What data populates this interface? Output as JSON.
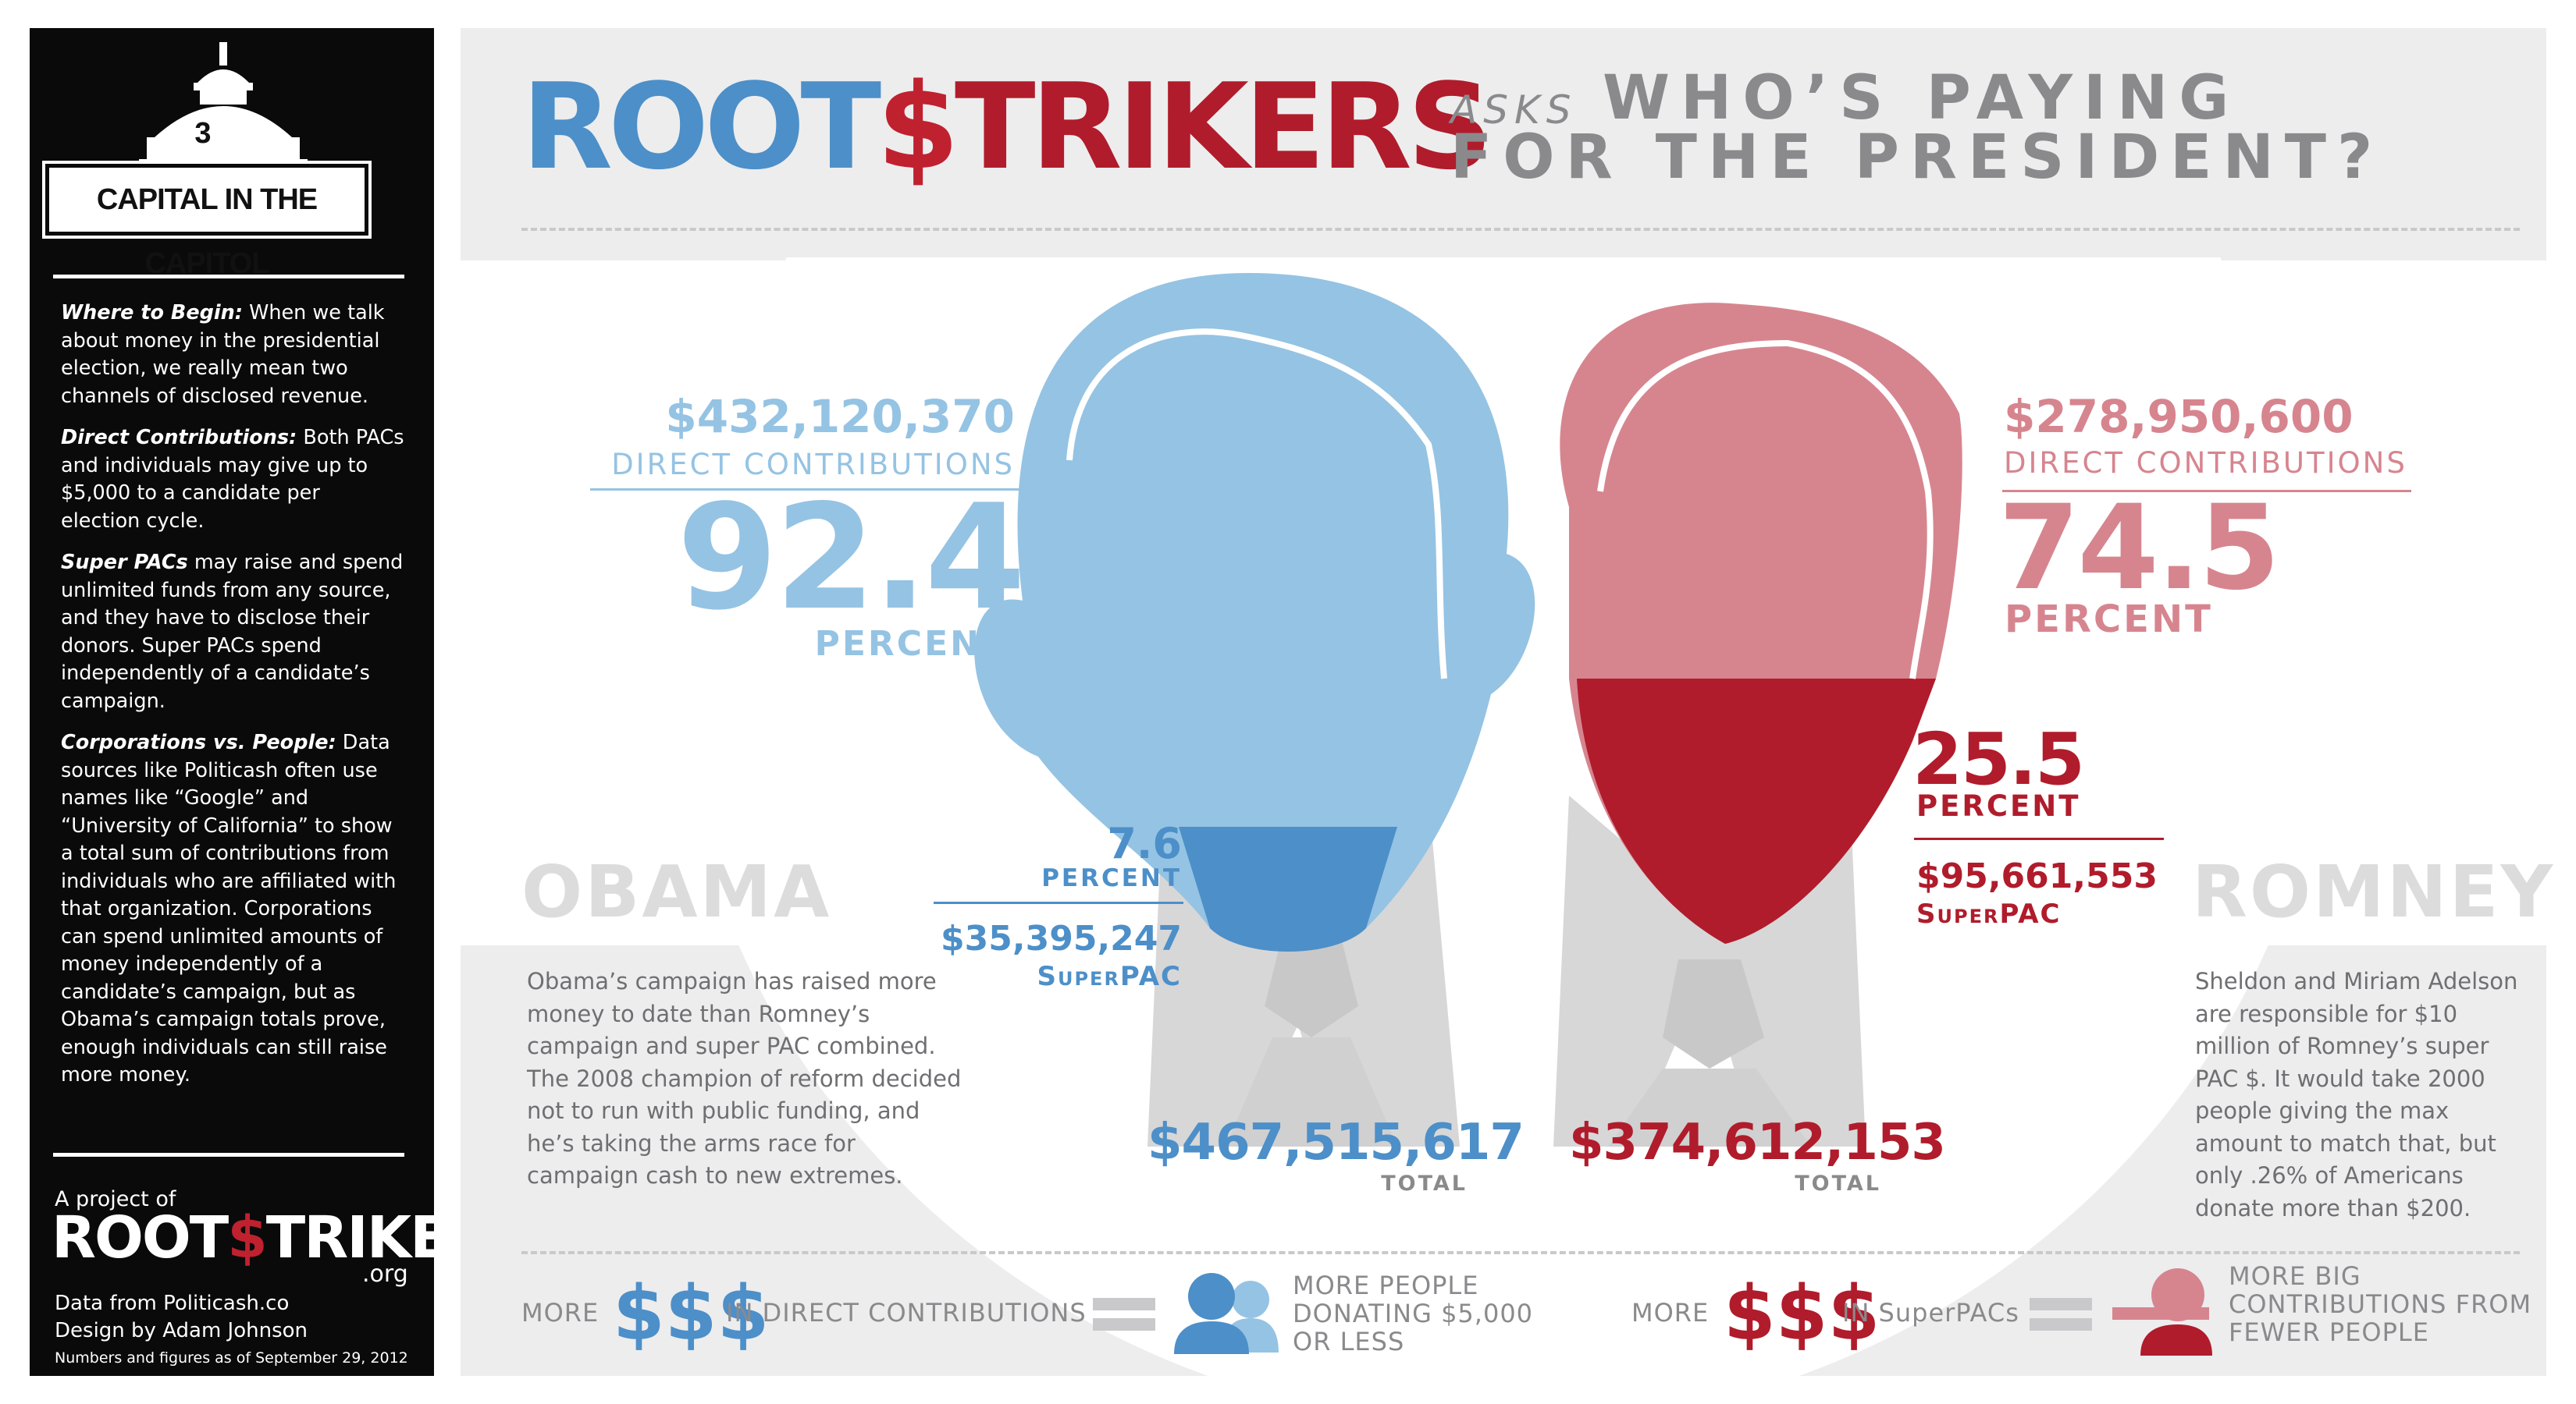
{
  "sidebar": {
    "issue_number": "3",
    "badge": "CAPITAL IN THE CAPITOL",
    "sections": [
      {
        "heading": "Where to Begin:",
        "body": " When we talk about money in the presidential election, we really mean two channels of disclosed revenue."
      },
      {
        "heading": "Direct Contributions:",
        "body": " Both PACs and individuals may give up to $5,000 to a candidate per election cycle."
      },
      {
        "heading": "Super PACs",
        "body": " may raise and spend unlimited funds from any source, and they have to disclose their donors. Super PACs spend independently of a candidate’s campaign."
      },
      {
        "heading": "Corporations vs. People:",
        "body": " Data sources like Politicash often use names like “Google” and “University of California” to show a total sum of contributions from individuals who are affiliated with that organization. Corporations can spend unlimited amounts of money independently of a candidate’s campaign, but as Obama’s campaign totals prove, enough individuals can still raise more money."
      }
    ],
    "project_of": "A project of",
    "logo_left": "ROOT",
    "logo_dollar": "$",
    "logo_right": "TRIKERS",
    "logo_suffix": ".org",
    "data_credit": "Data from Politicash.co",
    "design_credit": "Design by Adam Johnson",
    "as_of": "Numbers and figures as of September 29, 2012"
  },
  "header": {
    "logo_left": "ROOT",
    "logo_dollar": "$",
    "logo_right": "TRIKERS",
    "asks": "ASKS",
    "headline_line1": "WHO’S PAYING",
    "headline_line2": "FOR THE PRESIDENT?"
  },
  "colors": {
    "obama_light": "#95c3e3",
    "obama_dark": "#4d8fc8",
    "romney_light": "#d6858f",
    "romney_dark": "#b01c2b",
    "panel_gray": "#ededee"
  },
  "chart_data": {
    "type": "bar",
    "categories": [
      "OBAMA",
      "ROMNEY"
    ],
    "series": [
      {
        "name": "DIRECT CONTRIBUTIONS",
        "values": [
          432120370,
          278950600
        ],
        "percent": [
          92.4,
          74.5
        ]
      },
      {
        "name": "SuperPAC",
        "values": [
          35395247,
          95661553
        ],
        "percent": [
          7.6,
          25.5
        ]
      }
    ],
    "totals": [
      467515617,
      374612153
    ]
  },
  "obama": {
    "name": "OBAMA",
    "direct_amount": "$432,120,370",
    "direct_label": "DIRECT CONTRIBUTIONS",
    "direct_pct": "92.4",
    "pct_label": "PERCENT",
    "super_pct": "7.6",
    "super_pct_label": "PERCENT",
    "super_amount": "$35,395,247",
    "super_label": "SuperPAC",
    "total": "$467,515,617",
    "total_label": "TOTAL",
    "paragraph": "Obama’s campaign has raised more money to date than Romney’s campaign and super PAC combined. The 2008 champion of reform decided not to run with public funding, and he’s taking the arms race for campaign cash to new extremes."
  },
  "romney": {
    "name": "ROMNEY",
    "direct_amount": "$278,950,600",
    "direct_label": "DIRECT CONTRIBUTIONS",
    "direct_pct": "74.5",
    "pct_label": "PERCENT",
    "super_pct": "25.5",
    "super_pct_label": "PERCENT",
    "super_amount": "$95,661,553",
    "super_label": "SuperPAC",
    "total": "$374,612,153",
    "total_label": "TOTAL",
    "paragraph": "Sheldon and Miriam Adelson are responsible for $10 million of Romney’s super PAC $. It would take 2000 people giving the max amount to match that, but only .26% of Americans donate more than $200."
  },
  "legend": {
    "more": "MORE",
    "dollar_glyph": "$$$",
    "in_direct": "IN DIRECT CONTRIBUTIONS",
    "more_people": [
      "MORE PEOPLE",
      "DONATING $5,000",
      "OR LESS"
    ],
    "in_superpacs": "IN SuperPACs",
    "more_big": [
      "MORE BIG",
      "CONTRIBUTIONS FROM",
      "FEWER PEOPLE"
    ],
    "people_icon": "people-icon",
    "big-donor-icon": "big-donor-icon"
  }
}
